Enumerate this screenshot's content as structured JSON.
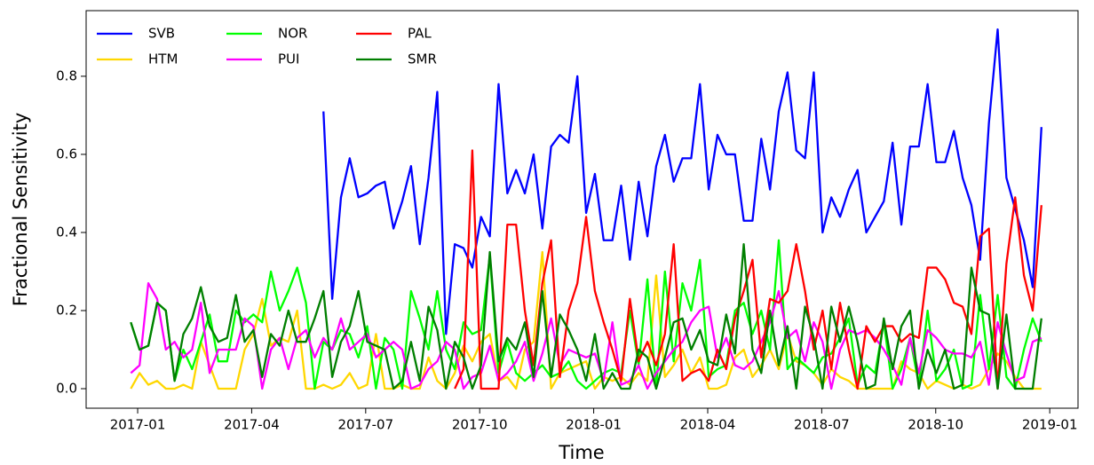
{
  "chart_data": {
    "type": "line",
    "xlabel": "Time",
    "ylabel": "Fractional Sensitivity",
    "legend": "upper left",
    "grid": false,
    "xlim": [
      2016.887,
      2019.062
    ],
    "ylim": [
      -0.05,
      0.968
    ],
    "xticks": [
      {
        "value": 2017,
        "label": "2017-01"
      },
      {
        "value": 2017.25,
        "label": "2017-04"
      },
      {
        "value": 2017.5,
        "label": "2017-07"
      },
      {
        "value": 2017.75,
        "label": "2017-10"
      },
      {
        "value": 2018,
        "label": "2018-01"
      },
      {
        "value": 2018.25,
        "label": "2018-04"
      },
      {
        "value": 2018.5,
        "label": "2018-07"
      },
      {
        "value": 2018.75,
        "label": "2018-10"
      },
      {
        "value": 2019,
        "label": "2019-01"
      }
    ],
    "yticks": [
      {
        "value": 0,
        "label": "0.0"
      },
      0.2,
      0.4,
      0.6,
      0.8
    ],
    "x": [
      2016.985,
      2017.0042,
      2017.0234,
      2017.0426,
      2017.0618,
      2017.081,
      2017.1002,
      2017.1194,
      2017.1386,
      2017.1578,
      2017.177,
      2017.1962,
      2017.2154,
      2017.2346,
      2017.2538,
      2017.273,
      2017.2922,
      2017.3114,
      2017.3306,
      2017.3498,
      2017.369,
      2017.3882,
      2017.4074,
      2017.4266,
      2017.4458,
      2017.465,
      2017.4842,
      2017.5034,
      2017.5226,
      2017.5418,
      2017.561,
      2017.5802,
      2017.5994,
      2017.6186,
      2017.6378,
      2017.657,
      2017.6762,
      2017.6954,
      2017.7146,
      2017.7338,
      2017.753,
      2017.7722,
      2017.7914,
      2017.8106,
      2017.8298,
      2017.849,
      2017.8682,
      2017.8874,
      2017.9066,
      2017.9258,
      2017.945,
      2017.9642,
      2017.9834,
      2018.0026,
      2018.0218,
      2018.041,
      2018.0602,
      2018.0794,
      2018.0986,
      2018.1178,
      2018.137,
      2018.1562,
      2018.1754,
      2018.1946,
      2018.2138,
      2018.233,
      2018.2522,
      2018.2714,
      2018.2906,
      2018.3098,
      2018.329,
      2018.3482,
      2018.3674,
      2018.3866,
      2018.4058,
      2018.425,
      2018.4442,
      2018.4634,
      2018.4826,
      2018.5018,
      2018.521,
      2018.5402,
      2018.5594,
      2018.5786,
      2018.5978,
      2018.617,
      2018.6362,
      2018.6554,
      2018.6746,
      2018.6938,
      2018.713,
      2018.7322,
      2018.7514,
      2018.7706,
      2018.7898,
      2018.809,
      2018.8282,
      2018.8474,
      2018.8666,
      2018.8858,
      2018.905,
      2018.9242,
      2018.9434,
      2018.9626,
      2018.9818
    ],
    "series": [
      {
        "name": "SVB",
        "color": "#0000ff",
        "values": [
          null,
          null,
          null,
          null,
          null,
          null,
          null,
          null,
          null,
          null,
          null,
          null,
          null,
          null,
          null,
          null,
          null,
          null,
          null,
          null,
          null,
          null,
          0.71,
          0.23,
          0.49,
          0.59,
          0.49,
          0.5,
          0.52,
          0.53,
          0.41,
          0.48,
          0.57,
          0.37,
          0.54,
          0.76,
          0.14,
          0.37,
          0.36,
          0.31,
          0.44,
          0.39,
          0.78,
          0.5,
          0.56,
          0.5,
          0.6,
          0.41,
          0.62,
          0.65,
          0.63,
          0.8,
          0.45,
          0.55,
          0.38,
          0.38,
          0.52,
          0.33,
          0.53,
          0.39,
          0.57,
          0.65,
          0.53,
          0.59,
          0.59,
          0.78,
          0.51,
          0.65,
          0.6,
          0.6,
          0.43,
          0.43,
          0.64,
          0.51,
          0.71,
          0.81,
          0.61,
          0.59,
          0.81,
          0.4,
          0.49,
          0.44,
          0.51,
          0.56,
          0.4,
          0.44,
          0.48,
          0.63,
          0.42,
          0.62,
          0.62,
          0.78,
          0.58,
          0.58,
          0.66,
          0.54,
          0.47,
          0.33,
          0.68,
          0.92,
          0.54,
          0.46,
          0.38,
          0.26,
          0.67
        ]
      },
      {
        "name": "HTM",
        "color": "#ffd700",
        "values": [
          0,
          0.04,
          0.01,
          0.02,
          0,
          0,
          0.01,
          0,
          0.12,
          0.06,
          0,
          0,
          0,
          0.1,
          0.14,
          0.23,
          0.11,
          0.13,
          0.12,
          0.2,
          0,
          0,
          0.01,
          0,
          0.01,
          0.04,
          0,
          0.01,
          0.14,
          0,
          0,
          0.01,
          0,
          0,
          0.08,
          0.02,
          0,
          0.04,
          0.11,
          0.07,
          0.12,
          0.14,
          0.02,
          0.03,
          0,
          0.1,
          0.12,
          0.35,
          0,
          0.04,
          0.05,
          0.06,
          0.07,
          0,
          0.03,
          0.02,
          0.03,
          0.01,
          0.04,
          0.02,
          0.29,
          0.03,
          0.06,
          0.1,
          0.04,
          0.08,
          0,
          0,
          0.01,
          0.08,
          0.1,
          0.03,
          0.06,
          0.1,
          0.05,
          0.14,
          0.07,
          0.06,
          0.04,
          0.01,
          0.05,
          0.03,
          0.02,
          0,
          0,
          0,
          0,
          0,
          0.07,
          0.05,
          0.04,
          0,
          0.02,
          0.01,
          0,
          0.01,
          0,
          0.01,
          0.05,
          0.09,
          0.07,
          0.03,
          0,
          0,
          0
        ]
      },
      {
        "name": "NOR",
        "color": "#00ff00",
        "values": [
          0.17,
          0.1,
          0.11,
          0.22,
          0.2,
          0.02,
          0.1,
          0.05,
          0.12,
          0.19,
          0.07,
          0.07,
          0.2,
          0.17,
          0.19,
          0.17,
          0.3,
          0.2,
          0.25,
          0.31,
          0.22,
          0,
          0.12,
          0.1,
          0.15,
          0.14,
          0.08,
          0.16,
          0,
          0.13,
          0.1,
          0,
          0.25,
          0.18,
          0.1,
          0.25,
          0.1,
          0.05,
          0.17,
          0.14,
          0.15,
          0.34,
          0.04,
          0.12,
          0.04,
          0.02,
          0.04,
          0.06,
          0.03,
          0.04,
          0.07,
          0.02,
          0,
          0.02,
          0.04,
          0.05,
          0.04,
          0.2,
          0.06,
          0.28,
          0,
          0.3,
          0.07,
          0.27,
          0.2,
          0.33,
          0.03,
          0.05,
          0.06,
          0.2,
          0.22,
          0.14,
          0.2,
          0.1,
          0.38,
          0.05,
          0.08,
          0.06,
          0.04,
          0.08,
          0.09,
          0.13,
          0.18,
          0.01,
          0.06,
          0.04,
          0.17,
          0,
          0.05,
          0.13,
          0.01,
          0.2,
          0.02,
          0.05,
          0.1,
          0,
          0.01,
          0.24,
          0.05,
          0.24,
          0.03,
          0,
          0.1,
          0.18,
          0.12
        ]
      },
      {
        "name": "PUI",
        "color": "#ff00ff",
        "values": [
          0.04,
          0.06,
          0.27,
          0.23,
          0.1,
          0.12,
          0.08,
          0.1,
          0.22,
          0.04,
          0.1,
          0.1,
          0.1,
          0.18,
          0.16,
          0,
          0.1,
          0.13,
          0.05,
          0.13,
          0.15,
          0.08,
          0.13,
          0.1,
          0.18,
          0.1,
          0.12,
          0.14,
          0.08,
          0.1,
          0.12,
          0.1,
          0,
          0.01,
          0.05,
          0.07,
          0.12,
          0.1,
          0,
          0.03,
          0.04,
          0.11,
          0.02,
          0.04,
          0.07,
          0.12,
          0.02,
          0.09,
          0.18,
          0.06,
          0.1,
          0.09,
          0.08,
          0.09,
          0.02,
          0.17,
          0.01,
          0.02,
          0.06,
          0,
          0.04,
          0.07,
          0.1,
          0.12,
          0.17,
          0.2,
          0.21,
          0.08,
          0.13,
          0.06,
          0.05,
          0.07,
          0.12,
          0.17,
          0.25,
          0.13,
          0.15,
          0.07,
          0.17,
          0.12,
          0,
          0.1,
          0.15,
          0.14,
          0.15,
          0.13,
          0.1,
          0.06,
          0.01,
          0.13,
          0.04,
          0.15,
          0.13,
          0.1,
          0.09,
          0.09,
          0.08,
          0.12,
          0.01,
          0.17,
          0.09,
          0.02,
          0.03,
          0.12,
          0.13
        ]
      },
      {
        "name": "PAL",
        "color": "#ff0000",
        "values": [
          null,
          null,
          null,
          null,
          null,
          null,
          null,
          null,
          null,
          null,
          null,
          null,
          null,
          null,
          null,
          null,
          null,
          null,
          null,
          null,
          null,
          null,
          null,
          null,
          null,
          null,
          null,
          null,
          null,
          null,
          null,
          null,
          null,
          null,
          null,
          null,
          null,
          0,
          0.05,
          0.61,
          0,
          0,
          0,
          0.42,
          0.42,
          0.2,
          0.06,
          0.27,
          0.38,
          0.03,
          0.2,
          0.27,
          0.44,
          0.25,
          0.17,
          0.1,
          0.02,
          0.23,
          0.07,
          0.12,
          0.06,
          0.14,
          0.37,
          0.02,
          0.04,
          0.05,
          0.02,
          0.1,
          0.05,
          0.18,
          0.25,
          0.33,
          0.08,
          0.23,
          0.22,
          0.25,
          0.37,
          0.25,
          0.1,
          0.2,
          0.05,
          0.22,
          0.1,
          0,
          0.16,
          0.12,
          0.16,
          0.16,
          0.12,
          0.14,
          0.13,
          0.31,
          0.31,
          0.28,
          0.22,
          0.21,
          0.14,
          0.39,
          0.41,
          0,
          0.32,
          0.49,
          0.29,
          0.2,
          0.47
        ]
      },
      {
        "name": "SMR",
        "color": "#007f00",
        "values": [
          0.17,
          0.1,
          0.11,
          0.22,
          0.2,
          0.02,
          0.14,
          0.18,
          0.26,
          0.16,
          0.12,
          0.13,
          0.24,
          0.12,
          0.15,
          0.03,
          0.14,
          0.11,
          0.2,
          0.12,
          0.12,
          0.18,
          0.25,
          0.03,
          0.12,
          0.16,
          0.25,
          0.12,
          0.11,
          0.1,
          0,
          0.02,
          0.12,
          0.02,
          0.21,
          0.15,
          0,
          0.12,
          0.08,
          0,
          0.06,
          0.35,
          0.07,
          0.13,
          0.1,
          0.17,
          0.03,
          0.25,
          0.03,
          0.19,
          0.15,
          0.1,
          0.02,
          0.14,
          0,
          0.04,
          0,
          0,
          0.1,
          0.08,
          0,
          0.08,
          0.17,
          0.18,
          0.1,
          0.15,
          0.07,
          0.06,
          0.19,
          0.09,
          0.37,
          0.1,
          0.04,
          0.2,
          0.06,
          0.16,
          0,
          0.21,
          0.13,
          0,
          0.21,
          0.12,
          0.21,
          0.12,
          0,
          0.01,
          0.18,
          0.05,
          0.16,
          0.2,
          0,
          0.1,
          0.04,
          0.1,
          0,
          0.01,
          0.31,
          0.2,
          0.19,
          0,
          0.19,
          0,
          0,
          0,
          0.18
        ]
      }
    ]
  }
}
